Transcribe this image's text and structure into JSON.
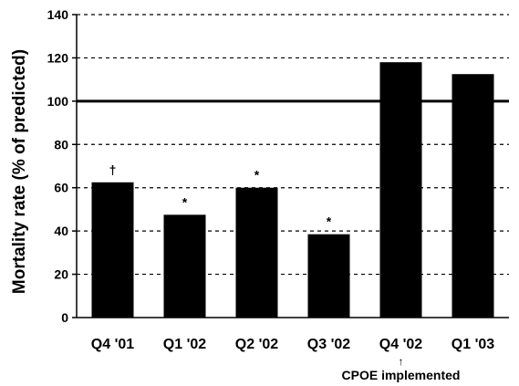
{
  "chart_data": {
    "type": "bar",
    "ylabel": "Mortality rate (% of predicted)",
    "xlabel": "",
    "ylim": [
      0,
      140
    ],
    "yticks": [
      0,
      20,
      40,
      60,
      80,
      100,
      120,
      140
    ],
    "grid": "horizontal-dashed",
    "reference_line": 100,
    "categories": [
      "Q4 '01",
      "Q1 '02",
      "Q2 '02",
      "Q3 '02",
      "Q4 '02",
      "Q1 '03"
    ],
    "values": [
      62.5,
      47.5,
      60,
      38.5,
      118,
      112.5
    ],
    "bar_markers": [
      "†",
      "*",
      "*",
      "*",
      "",
      ""
    ],
    "annotation": {
      "arrow": "↑",
      "text": "CPOE implemented",
      "category": "Q4 '02"
    },
    "colors": {
      "bar": "#000000",
      "grid": "#000000",
      "background": "#ffffff"
    }
  }
}
